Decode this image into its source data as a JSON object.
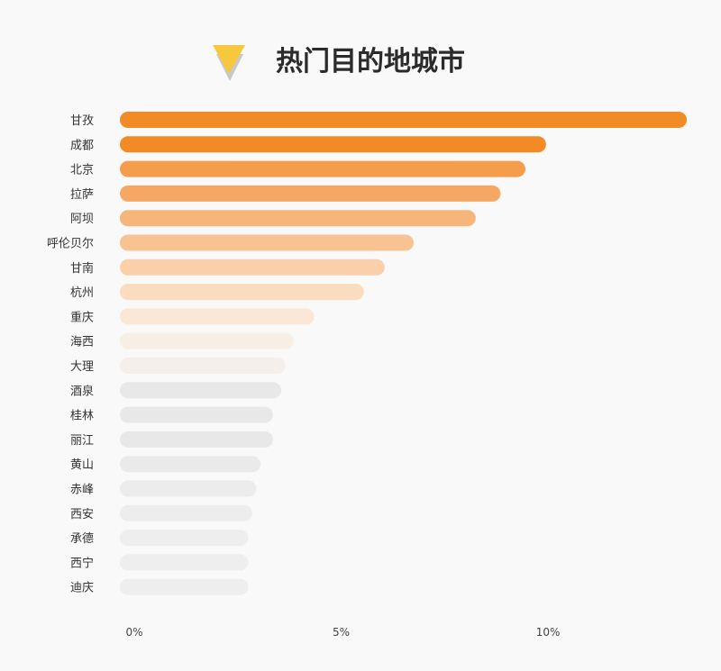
{
  "chart_data": {
    "type": "bar",
    "orientation": "horizontal",
    "title": "热门目的地城市",
    "categories": [
      "甘孜",
      "成都",
      "北京",
      "拉萨",
      "阿坝",
      "呼伦贝尔",
      "甘南",
      "杭州",
      "重庆",
      "海西",
      "大理",
      "酒泉",
      "桂林",
      "丽江",
      "黄山",
      "赤峰",
      "西安",
      "承德",
      "西宁",
      "迪庆"
    ],
    "values": [
      13.7,
      10.3,
      9.8,
      9.2,
      8.6,
      7.1,
      6.4,
      5.9,
      4.7,
      4.2,
      4.0,
      3.9,
      3.7,
      3.7,
      3.4,
      3.3,
      3.2,
      3.1,
      3.1,
      3.1
    ],
    "bar_colors": [
      "#f28a25",
      "#f28a25",
      "#f49d4d",
      "#f5a763",
      "#f6b679",
      "#f8c392",
      "#f9d0a9",
      "#fadcbf",
      "#fbe7d6",
      "#f8efe4",
      "#f4efeb",
      "#e8e8e8",
      "#e8e8e8",
      "#e8e8e8",
      "#eaeaea",
      "#ececec",
      "#ededed",
      "#eeeeee",
      "#eeeeee",
      "#eeeeee"
    ],
    "xticks": [
      "0%",
      "5%",
      "10%"
    ],
    "xtick_values": [
      0,
      5,
      10
    ],
    "xlim": [
      0,
      13.7
    ],
    "grid": false,
    "legend": "none"
  },
  "colors": {
    "title_icon_front": "#f7c83c",
    "title_icon_back": "#c8c8c8"
  }
}
